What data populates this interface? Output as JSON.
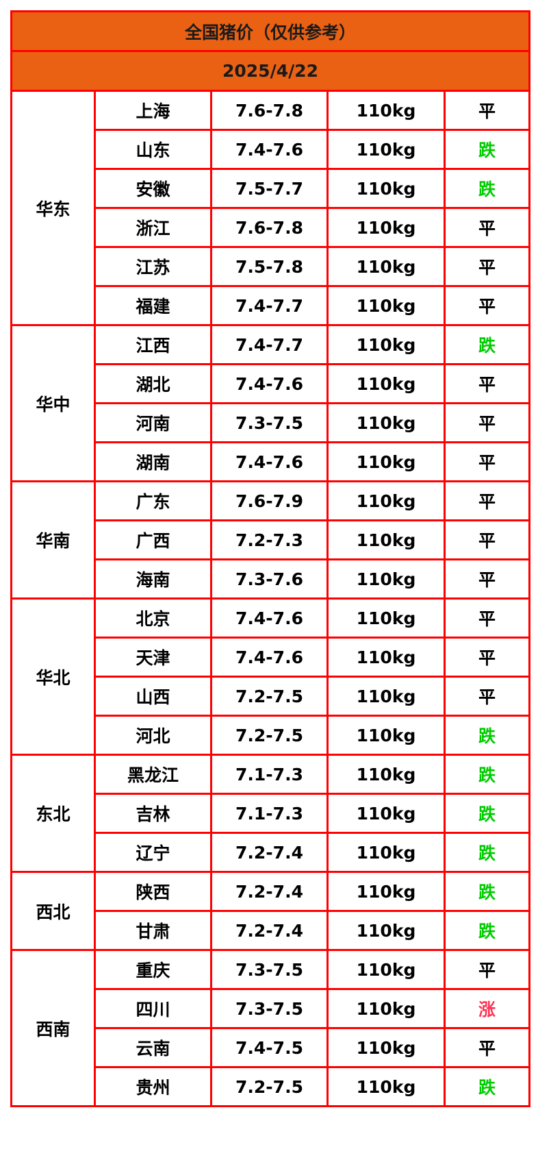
{
  "title": "全国猪价（仅供参考）",
  "date": "2025/4/22",
  "colors": {
    "header_bg": "#ea6114",
    "border": "#ff0000",
    "down": "#00cc00",
    "up": "#ff3355",
    "flat": "#000000"
  },
  "regions": [
    {
      "name": "华东",
      "rows": [
        {
          "province": "上海",
          "price": "7.6-7.8",
          "weight": "110kg",
          "trend": "平"
        },
        {
          "province": "山东",
          "price": "7.4-7.6",
          "weight": "110kg",
          "trend": "跌"
        },
        {
          "province": "安徽",
          "price": "7.5-7.7",
          "weight": "110kg",
          "trend": "跌"
        },
        {
          "province": "浙江",
          "price": "7.6-7.8",
          "weight": "110kg",
          "trend": "平"
        },
        {
          "province": "江苏",
          "price": "7.5-7.8",
          "weight": "110kg",
          "trend": "平"
        },
        {
          "province": "福建",
          "price": "7.4-7.7",
          "weight": "110kg",
          "trend": "平"
        }
      ]
    },
    {
      "name": "华中",
      "rows": [
        {
          "province": "江西",
          "price": "7.4-7.7",
          "weight": "110kg",
          "trend": "跌"
        },
        {
          "province": "湖北",
          "price": "7.4-7.6",
          "weight": "110kg",
          "trend": "平"
        },
        {
          "province": "河南",
          "price": "7.3-7.5",
          "weight": "110kg",
          "trend": "平"
        },
        {
          "province": "湖南",
          "price": "7.4-7.6",
          "weight": "110kg",
          "trend": "平"
        }
      ]
    },
    {
      "name": "华南",
      "rows": [
        {
          "province": "广东",
          "price": "7.6-7.9",
          "weight": "110kg",
          "trend": "平"
        },
        {
          "province": "广西",
          "price": "7.2-7.3",
          "weight": "110kg",
          "trend": "平"
        },
        {
          "province": "海南",
          "price": "7.3-7.6",
          "weight": "110kg",
          "trend": "平"
        }
      ]
    },
    {
      "name": "华北",
      "rows": [
        {
          "province": "北京",
          "price": "7.4-7.6",
          "weight": "110kg",
          "trend": "平"
        },
        {
          "province": "天津",
          "price": "7.4-7.6",
          "weight": "110kg",
          "trend": "平"
        },
        {
          "province": "山西",
          "price": "7.2-7.5",
          "weight": "110kg",
          "trend": "平"
        },
        {
          "province": "河北",
          "price": "7.2-7.5",
          "weight": "110kg",
          "trend": "跌"
        }
      ]
    },
    {
      "name": "东北",
      "rows": [
        {
          "province": "黑龙江",
          "price": "7.1-7.3",
          "weight": "110kg",
          "trend": "跌"
        },
        {
          "province": "吉林",
          "price": "7.1-7.3",
          "weight": "110kg",
          "trend": "跌"
        },
        {
          "province": "辽宁",
          "price": "7.2-7.4",
          "weight": "110kg",
          "trend": "跌"
        }
      ]
    },
    {
      "name": "西北",
      "rows": [
        {
          "province": "陕西",
          "price": "7.2-7.4",
          "weight": "110kg",
          "trend": "跌"
        },
        {
          "province": "甘肃",
          "price": "7.2-7.4",
          "weight": "110kg",
          "trend": "跌"
        }
      ]
    },
    {
      "name": "西南",
      "rows": [
        {
          "province": "重庆",
          "price": "7.3-7.5",
          "weight": "110kg",
          "trend": "平"
        },
        {
          "province": "四川",
          "price": "7.3-7.5",
          "weight": "110kg",
          "trend": "涨"
        },
        {
          "province": "云南",
          "price": "7.4-7.5",
          "weight": "110kg",
          "trend": "平"
        },
        {
          "province": "贵州",
          "price": "7.2-7.5",
          "weight": "110kg",
          "trend": "跌"
        }
      ]
    }
  ]
}
